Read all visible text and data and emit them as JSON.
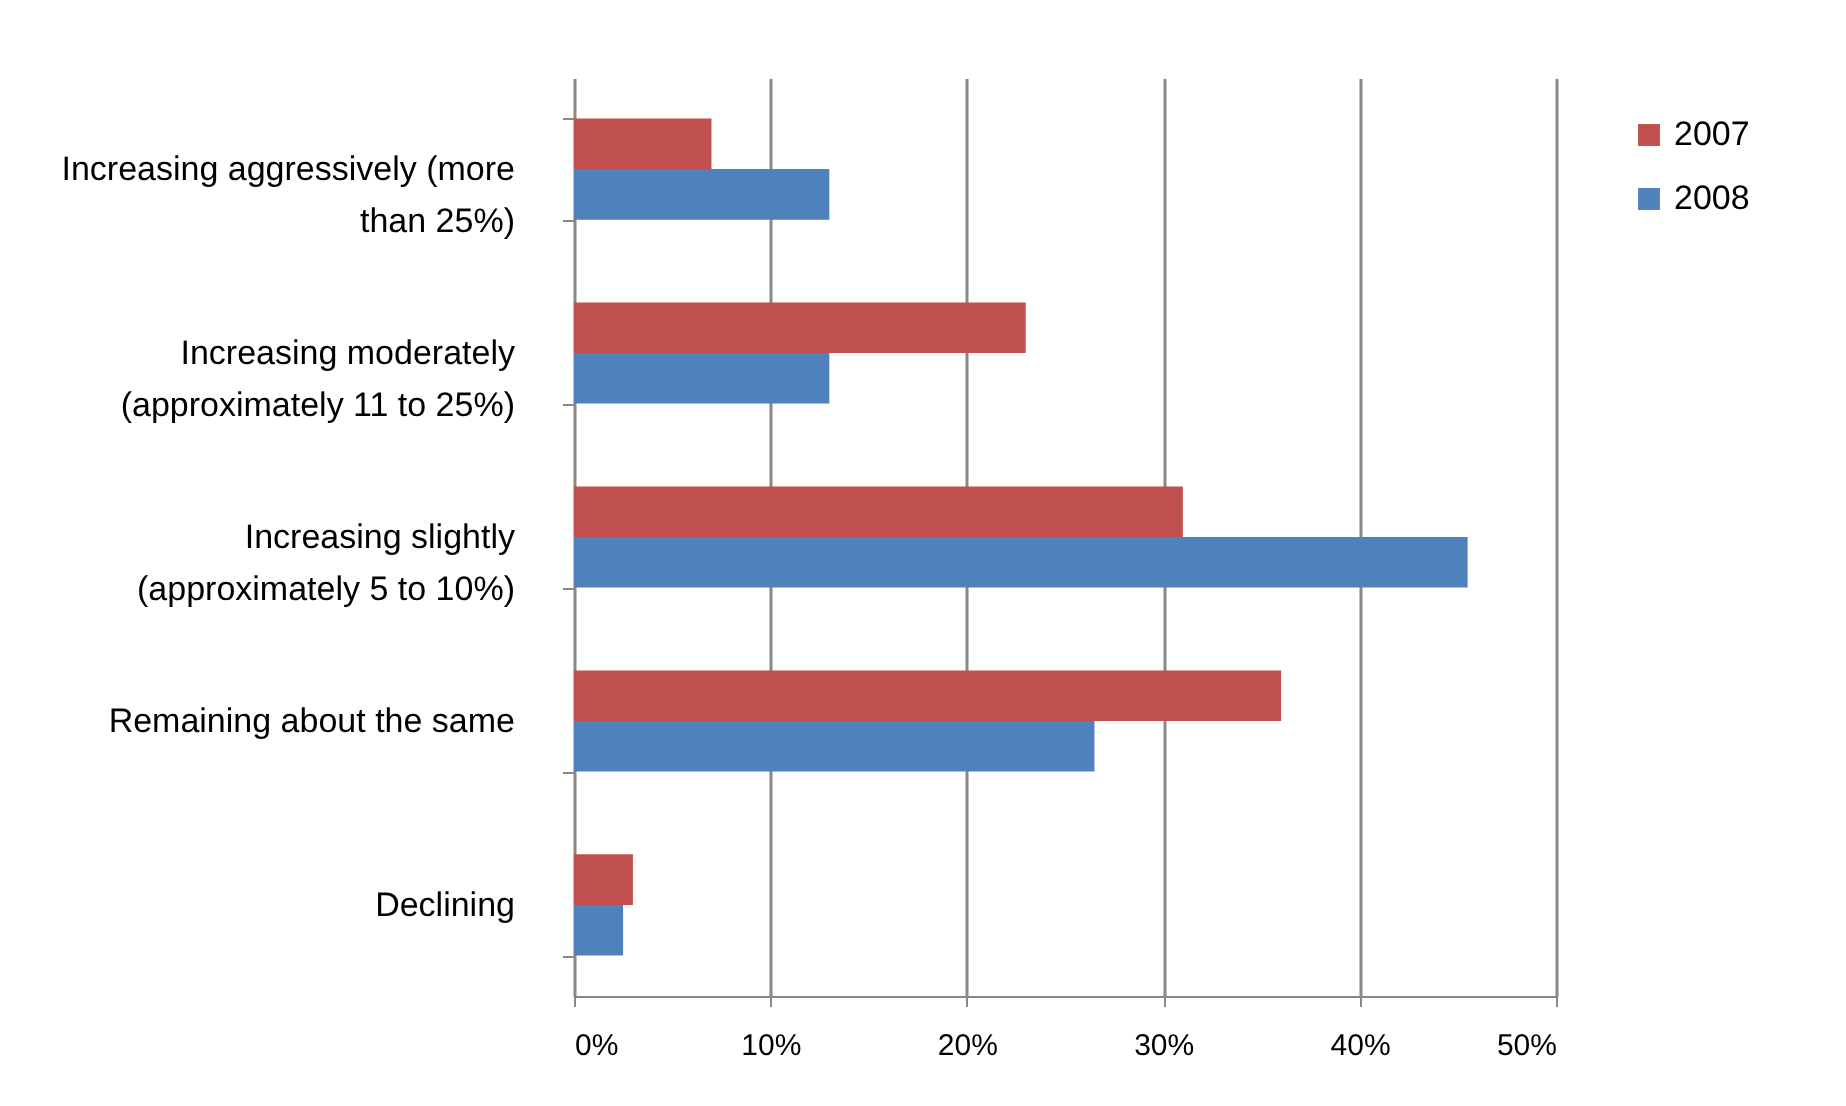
{
  "chart_data": {
    "type": "bar",
    "orientation": "horizontal",
    "categories": [
      "Increasing aggressively (more than 25%)",
      "Increasing moderately (approximately 11 to 25%)",
      "Increasing slightly (approximately 5 to 10%)",
      "Remaining about the same",
      "Declining"
    ],
    "series": [
      {
        "name": "2007",
        "color": "#c0504d",
        "values": [
          7,
          23,
          31,
          36,
          3
        ]
      },
      {
        "name": "2008",
        "color": "#4f81bd",
        "values": [
          13,
          13,
          45.5,
          26.5,
          2.5
        ]
      }
    ],
    "xlim": [
      0,
      50
    ],
    "xticks": [
      {
        "value": 0,
        "label": "0%"
      },
      {
        "value": 10,
        "label": "10%"
      },
      {
        "value": 20,
        "label": "20%"
      },
      {
        "value": 30,
        "label": "30%"
      },
      {
        "value": 40,
        "label": "40%"
      },
      {
        "value": 50,
        "label": "50%"
      }
    ],
    "grid": "x",
    "legend": "right"
  }
}
